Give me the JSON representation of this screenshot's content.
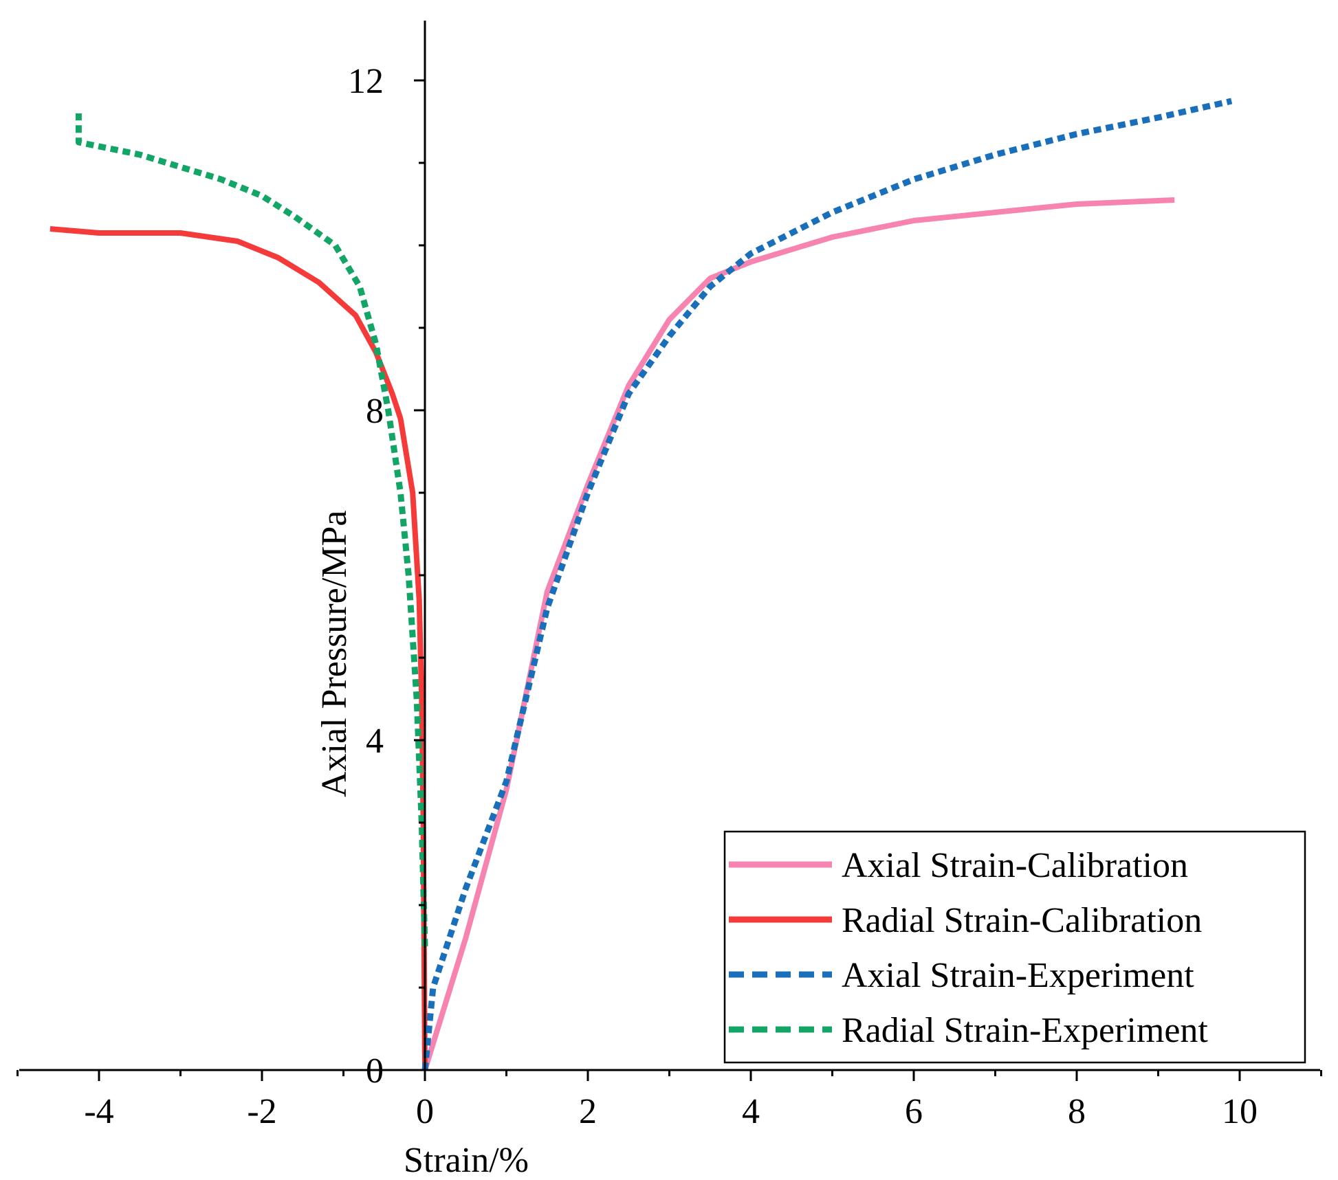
{
  "chart_data": {
    "type": "line",
    "title": "",
    "xlabel": "Strain/%",
    "ylabel": "Axial Pressure/MPa",
    "xlim": [
      -5,
      11
    ],
    "ylim": [
      0,
      13
    ],
    "x_ticks": [
      -4,
      -2,
      0,
      2,
      4,
      6,
      8,
      10
    ],
    "x_tick_labels": [
      "-4",
      "-2",
      "0",
      "2",
      "4",
      "6",
      "8",
      "10"
    ],
    "y_ticks": [
      0,
      4,
      8,
      12
    ],
    "y_tick_labels": [
      "0",
      "4",
      "8",
      "12"
    ],
    "grid": false,
    "legend_position": "bottom-right",
    "series": [
      {
        "name": "Axial Strain-Calibration",
        "style": "solid",
        "color": "#f783b0",
        "points": [
          [
            0,
            0
          ],
          [
            0.5,
            1.6
          ],
          [
            1,
            3.4
          ],
          [
            1.5,
            5.8
          ],
          [
            2,
            7.1
          ],
          [
            2.5,
            8.3
          ],
          [
            3,
            9.1
          ],
          [
            3.5,
            9.6
          ],
          [
            4,
            9.8
          ],
          [
            5,
            10.1
          ],
          [
            6,
            10.3
          ],
          [
            7,
            10.4
          ],
          [
            8,
            10.5
          ],
          [
            9.2,
            10.55
          ]
        ]
      },
      {
        "name": "Radial Strain-Calibration",
        "style": "solid",
        "color": "#f53a3a",
        "points": [
          [
            0,
            0
          ],
          [
            -0.01,
            1.5
          ],
          [
            -0.02,
            3
          ],
          [
            -0.04,
            4.5
          ],
          [
            -0.07,
            5.7
          ],
          [
            -0.15,
            7
          ],
          [
            -0.3,
            7.9
          ],
          [
            -0.4,
            8.2
          ],
          [
            -0.6,
            8.7
          ],
          [
            -0.85,
            9.15
          ],
          [
            -1.3,
            9.55
          ],
          [
            -1.8,
            9.85
          ],
          [
            -2.3,
            10.05
          ],
          [
            -3,
            10.15
          ],
          [
            -4,
            10.15
          ],
          [
            -4.6,
            10.2
          ]
        ]
      },
      {
        "name": "Axial Strain-Experiment",
        "style": "dashed",
        "color": "#1a6fba",
        "points": [
          [
            0,
            0
          ],
          [
            0.1,
            1
          ],
          [
            0.5,
            2.2
          ],
          [
            1,
            3.5
          ],
          [
            1.5,
            5.6
          ],
          [
            2,
            7
          ],
          [
            2.5,
            8.2
          ],
          [
            3,
            8.9
          ],
          [
            3.5,
            9.5
          ],
          [
            4,
            9.9
          ],
          [
            5,
            10.4
          ],
          [
            6,
            10.8
          ],
          [
            7,
            11.1
          ],
          [
            8,
            11.35
          ],
          [
            9,
            11.55
          ],
          [
            9.9,
            11.75
          ]
        ]
      },
      {
        "name": "Radial Strain-Experiment",
        "style": "dashed",
        "color": "#13a566",
        "points": [
          [
            0,
            1.5
          ],
          [
            -0.04,
            3
          ],
          [
            -0.1,
            4.5
          ],
          [
            -0.2,
            6
          ],
          [
            -0.3,
            7
          ],
          [
            -0.45,
            8
          ],
          [
            -0.6,
            8.8
          ],
          [
            -0.8,
            9.5
          ],
          [
            -1.1,
            10
          ],
          [
            -1.6,
            10.35
          ],
          [
            -2,
            10.6
          ],
          [
            -2.5,
            10.8
          ],
          [
            -3,
            10.95
          ],
          [
            -3.5,
            11.1
          ],
          [
            -4,
            11.2
          ],
          [
            -4.25,
            11.25
          ],
          [
            -4.25,
            11.6
          ]
        ]
      }
    ]
  }
}
